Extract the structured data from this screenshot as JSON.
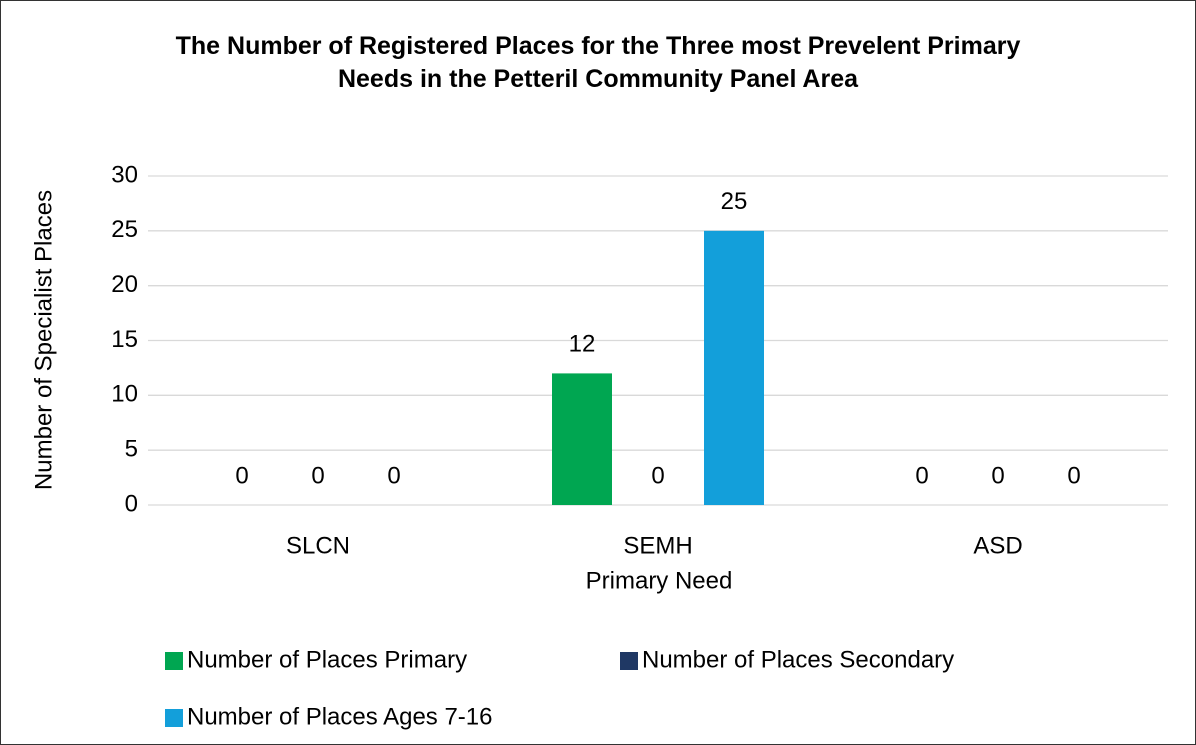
{
  "chart_data": {
    "type": "bar",
    "title": "The Number of Registered Places for the Three most Prevelent Primary Needs in the Petteril Community Panel Area",
    "x_label": "Primary Need",
    "y_label": "Number of Specialist Places",
    "categories": [
      "SLCN",
      "SEMH",
      "ASD"
    ],
    "series": [
      {
        "name": "Number of Places Primary",
        "color": "#00a651",
        "values": [
          0,
          12,
          0
        ]
      },
      {
        "name": "Number of Places Secondary",
        "color": "#1f3864",
        "values": [
          0,
          0,
          0
        ]
      },
      {
        "name": "Number of Places Ages 7-16",
        "color": "#139fda",
        "values": [
          0,
          25,
          0
        ]
      }
    ],
    "ylim": [
      0,
      30
    ],
    "yticks": [
      0,
      5,
      10,
      15,
      20,
      25,
      30
    ],
    "grid": true,
    "legend": "bottom"
  }
}
